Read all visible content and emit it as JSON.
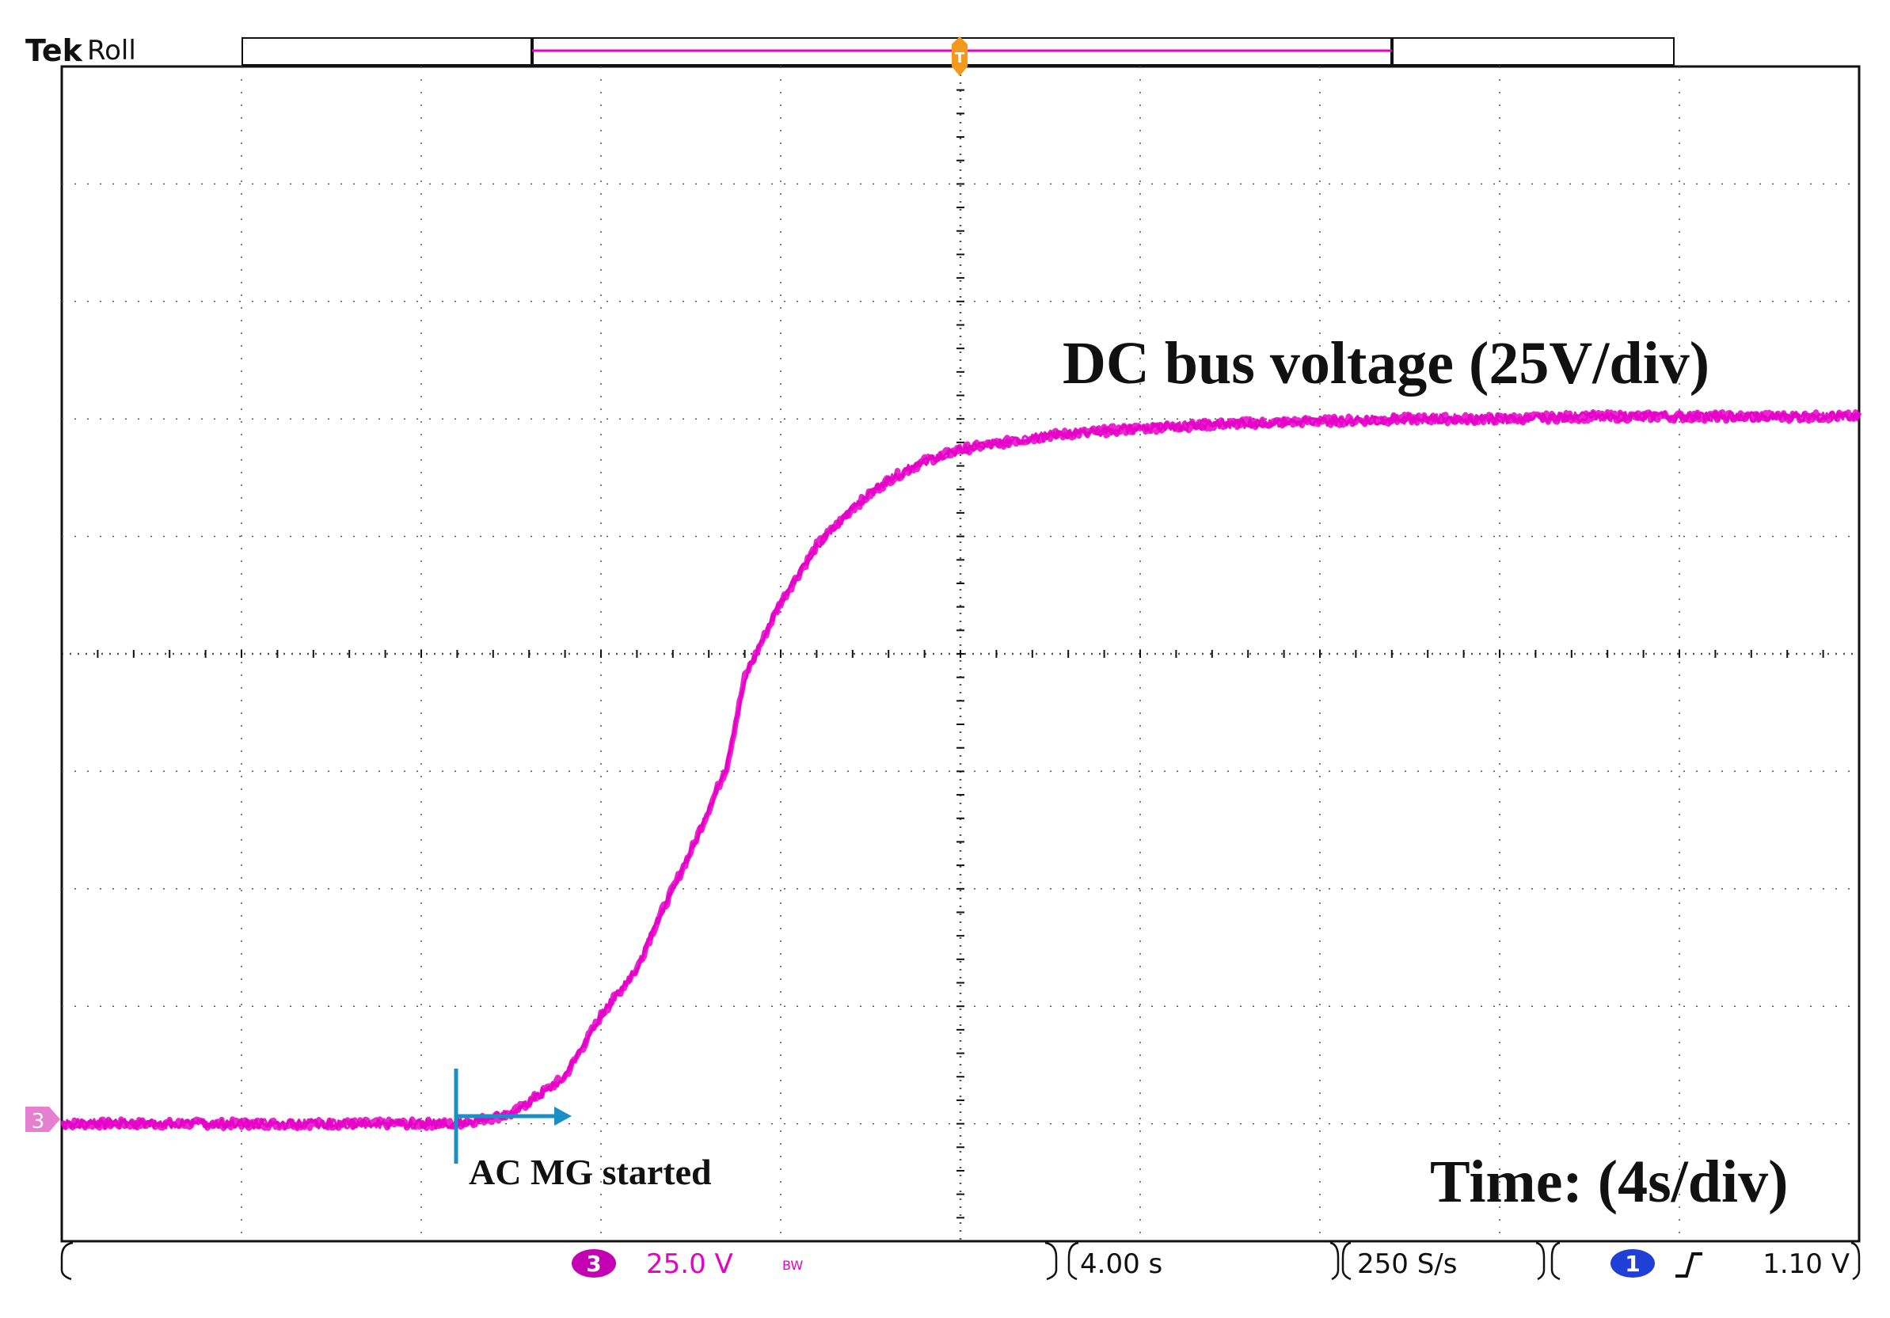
{
  "header": {
    "brand": "Tek",
    "mode": "Roll"
  },
  "status_bar": {
    "channel": "3",
    "volts_per_div": "25.0 V",
    "bw_mark": "BW",
    "time_per_div": "4.00 s",
    "sample_rate": "250 S/s",
    "trigger_channel": "1",
    "trigger_level": "1.10 V"
  },
  "markers": {
    "channel_marker": "3",
    "trigger_marker": "T"
  },
  "colors": {
    "trace": "#e600c8",
    "arrow": "#1a8fc6",
    "trigger": "#f39a1e",
    "grid": "#555555",
    "channel1": "#1f3fd6"
  },
  "chart_data": {
    "type": "line",
    "title": "",
    "xlabel": "Time: (4s/div)",
    "ylabel": "DC bus voltage (25V/div)",
    "x_units": "s",
    "y_units": "V",
    "xlim": [
      -20,
      20
    ],
    "ylim": [
      -125,
      125
    ],
    "grid": true,
    "divisions": {
      "x": 10,
      "y": 10
    },
    "series": [
      {
        "x": [
          -20,
          -11.2,
          -10.0,
          -8.8,
          -8.0,
          -7.2,
          -6.8,
          -6.0,
          -5.2,
          -4.8,
          -4.0,
          -3.2,
          -2.4,
          -1.6,
          -0.8,
          0,
          2,
          4,
          6,
          8,
          10,
          12,
          14,
          16,
          18,
          20
        ],
        "y": [
          -100,
          -100,
          -98,
          -90,
          -77,
          -67,
          -58,
          -42,
          -24,
          -5,
          11,
          23,
          31,
          37,
          41,
          43.5,
          46.5,
          48,
          49,
          49.5,
          50,
          50,
          50.5,
          50.5,
          50.5,
          50.5
        ]
      }
    ],
    "annotations": [
      {
        "text": "AC MG started",
        "x": -11.2,
        "y": -100
      }
    ]
  }
}
